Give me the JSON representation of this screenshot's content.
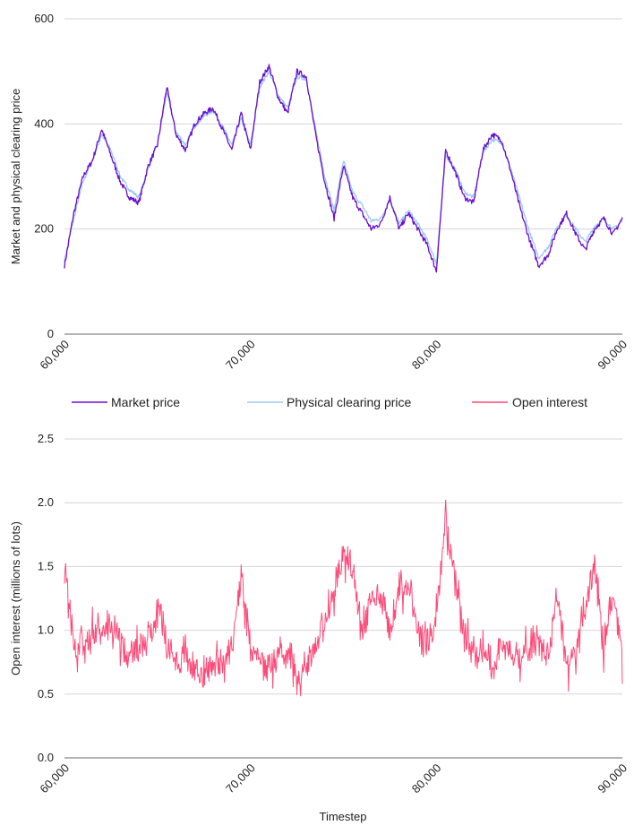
{
  "chart_data": [
    {
      "type": "line",
      "title": "",
      "xlabel": "",
      "ylabel": "Market and physical clearing price",
      "xlim": [
        60000,
        90000
      ],
      "ylim": [
        0,
        600
      ],
      "xticks": [
        "60,000",
        "70,000",
        "80,000",
        "90,000"
      ],
      "yticks": [
        "0",
        "200",
        "400",
        "600"
      ],
      "grid": true,
      "x": [
        60000,
        60500,
        61000,
        61500,
        62000,
        62500,
        63000,
        63500,
        64000,
        64500,
        65000,
        65500,
        66000,
        66500,
        67000,
        67500,
        68000,
        68500,
        69000,
        69500,
        70000,
        70500,
        71000,
        71500,
        72000,
        72500,
        73000,
        73500,
        74000,
        74500,
        75000,
        75500,
        76000,
        76500,
        77000,
        77500,
        78000,
        78500,
        79000,
        79500,
        80000,
        80500,
        81000,
        81500,
        82000,
        82500,
        83000,
        83500,
        84000,
        84500,
        85000,
        85500,
        86000,
        86500,
        87000,
        87500,
        88000,
        88500,
        89000,
        89500,
        90000
      ],
      "series": [
        {
          "name": "Market price",
          "color": "#6a0fd0",
          "values": [
            130,
            230,
            300,
            330,
            390,
            340,
            290,
            260,
            250,
            320,
            360,
            470,
            380,
            350,
            400,
            420,
            430,
            390,
            350,
            420,
            350,
            480,
            510,
            450,
            420,
            500,
            490,
            380,
            290,
            220,
            320,
            260,
            230,
            200,
            210,
            260,
            200,
            230,
            200,
            170,
            120,
            350,
            310,
            260,
            250,
            350,
            380,
            370,
            310,
            240,
            180,
            130,
            150,
            200,
            230,
            190,
            160,
            200,
            220,
            190,
            220
          ]
        },
        {
          "name": "Physical clearing price",
          "color": "#9ec8ee",
          "values": [
            140,
            220,
            290,
            330,
            380,
            350,
            300,
            275,
            260,
            315,
            360,
            460,
            385,
            360,
            395,
            415,
            425,
            395,
            360,
            410,
            360,
            470,
            500,
            455,
            430,
            490,
            485,
            390,
            300,
            235,
            330,
            270,
            245,
            215,
            220,
            255,
            210,
            235,
            210,
            180,
            135,
            340,
            315,
            270,
            260,
            345,
            370,
            365,
            315,
            255,
            195,
            145,
            165,
            205,
            225,
            200,
            175,
            205,
            220,
            200,
            215
          ]
        }
      ],
      "legend": "below"
    },
    {
      "type": "line",
      "title": "",
      "xlabel": "Timestep",
      "ylabel": "Open interest (millions of lots)",
      "xlim": [
        60000,
        90000
      ],
      "ylim": [
        0,
        2.5
      ],
      "xticks": [
        "60,000",
        "70,000",
        "80,000",
        "90,000"
      ],
      "yticks": [
        "0.0",
        "0.5",
        "1.0",
        "1.5",
        "2.0",
        "2.5"
      ],
      "grid": true,
      "x": [
        60000,
        60500,
        61000,
        61500,
        62000,
        62500,
        63000,
        63500,
        64000,
        64500,
        65000,
        65500,
        66000,
        66500,
        67000,
        67500,
        68000,
        68500,
        69000,
        69500,
        70000,
        70500,
        71000,
        71500,
        72000,
        72500,
        73000,
        73500,
        74000,
        74500,
        75000,
        75500,
        76000,
        76500,
        77000,
        77500,
        78000,
        78500,
        79000,
        79500,
        80000,
        80500,
        81000,
        81500,
        82000,
        82500,
        83000,
        83500,
        84000,
        84500,
        85000,
        85500,
        86000,
        86500,
        87000,
        87500,
        88000,
        88500,
        89000,
        89500,
        90000
      ],
      "series": [
        {
          "name": "Open interest",
          "color": "#ff4a78",
          "values": [
            1.6,
            0.85,
            0.9,
            1.0,
            0.95,
            1.05,
            0.9,
            0.8,
            0.85,
            0.9,
            1.2,
            0.9,
            0.75,
            0.8,
            0.7,
            0.65,
            0.75,
            0.75,
            0.85,
            1.4,
            0.9,
            0.75,
            0.7,
            0.8,
            0.85,
            0.65,
            0.7,
            0.9,
            1.1,
            1.3,
            1.6,
            1.5,
            1.0,
            1.2,
            1.3,
            1.0,
            1.3,
            1.4,
            1.0,
            0.9,
            1.1,
            1.9,
            1.4,
            1.0,
            0.8,
            0.85,
            0.7,
            0.9,
            0.8,
            0.75,
            0.85,
            0.9,
            0.8,
            1.3,
            0.7,
            0.8,
            1.2,
            1.5,
            0.9,
            1.3,
            0.8
          ]
        }
      ],
      "legend": "above"
    }
  ],
  "legend_items": [
    {
      "label": "Market price",
      "color": "#6a0fd0"
    },
    {
      "label": "Physical clearing price",
      "color": "#9ec8ee"
    },
    {
      "label": "Open interest",
      "color": "#ff4a78"
    }
  ]
}
